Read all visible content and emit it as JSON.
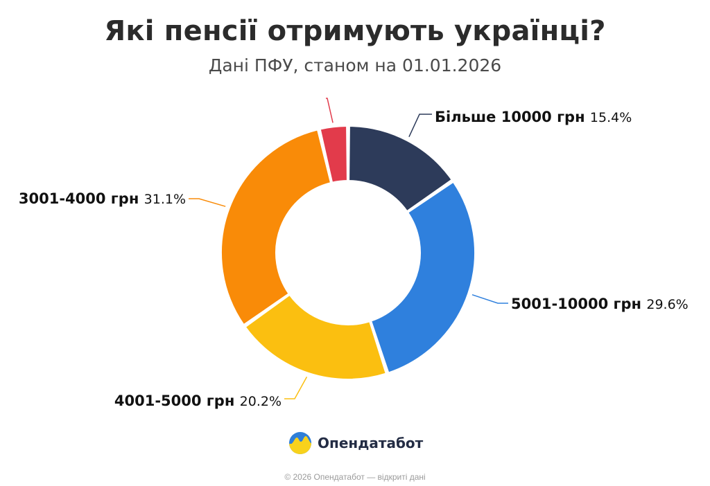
{
  "header": {
    "title": "Які пенсії отримують українці?",
    "subtitle": "Дані ПФУ, станом на 01.01.2026"
  },
  "chart_data": {
    "type": "pie",
    "donut": true,
    "start": "top, clockwise",
    "slices": [
      {
        "label": "Більше 10000 грн",
        "value": 15.4,
        "value_label": "15.4%",
        "color": "#2d3b5a"
      },
      {
        "label": "5001-10000 грн",
        "value": 29.6,
        "value_label": "29.6%",
        "color": "#2f80dd"
      },
      {
        "label": "4001-5000 грн",
        "value": 20.2,
        "value_label": "20.2%",
        "color": "#fbbf10"
      },
      {
        "label": "3001-4000 грн",
        "value": 31.1,
        "value_label": "31.1%",
        "color": "#f98b08"
      },
      {
        "label": "",
        "value": 3.7,
        "value_label": "",
        "color": "#e23b4b"
      }
    ]
  },
  "brand": {
    "name": "Опендатабот",
    "logo_icon": "opendatabot-logo-icon"
  },
  "footer": {
    "text": "© 2026 Опендатабот — відкриті дані"
  }
}
